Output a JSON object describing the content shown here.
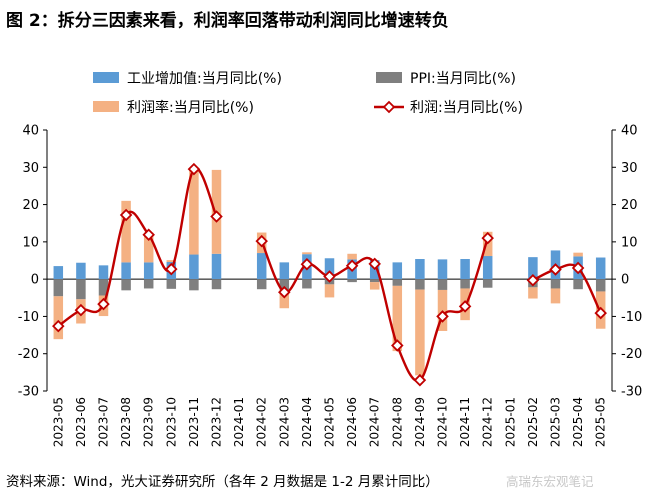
{
  "title": "图 2：拆分三因素来看，利润率回落带动利润同比增速转负",
  "source": "资料来源：Wind，光大证券研究所（各年 2 月数据是 1-2 月累计同比）",
  "watermark": "高瑞东宏观笔记",
  "colors": {
    "industrial": "#5b9bd5",
    "ppi": "#7f7f7f",
    "margin": "#f4b183",
    "profit": "#c00000"
  },
  "chart_data": {
    "type": "bar+line",
    "categories": [
      "2023-05",
      "2023-06",
      "2023-07",
      "2023-08",
      "2023-09",
      "2023-10",
      "2023-11",
      "2023-12",
      "2024-01",
      "2024-02",
      "2024-03",
      "2024-04",
      "2024-05",
      "2024-06",
      "2024-07",
      "2024-08",
      "2024-09",
      "2024-10",
      "2024-11",
      "2024-12",
      "2025-01",
      "2025-02",
      "2025-03",
      "2025-04",
      "2025-05"
    ],
    "ylim": [
      -30,
      40
    ],
    "yticks": [
      40,
      30,
      20,
      10,
      0,
      -10,
      -20,
      -30
    ],
    "grid": false,
    "legend_position": "top",
    "series": [
      {
        "name": "工业增加值:当月同比(%)",
        "type": "bar",
        "values": [
          3.5,
          4.4,
          3.7,
          4.5,
          4.5,
          4.6,
          6.6,
          6.8,
          null,
          7.0,
          4.5,
          6.7,
          5.6,
          5.3,
          5.1,
          4.5,
          5.4,
          5.3,
          5.4,
          6.2,
          null,
          5.9,
          7.7,
          6.1,
          5.8
        ]
      },
      {
        "name": "PPI:当月同比(%)",
        "type": "bar",
        "values": [
          -4.6,
          -5.4,
          -4.4,
          -3.0,
          -2.5,
          -2.6,
          -3.0,
          -2.7,
          null,
          -2.7,
          -2.8,
          -2.5,
          -1.4,
          -0.8,
          -0.8,
          -1.8,
          -2.8,
          -2.9,
          -2.5,
          -2.3,
          null,
          -2.2,
          -2.5,
          -2.7,
          -3.3
        ]
      },
      {
        "name": "利润率:当月同比(%)",
        "type": "bar",
        "values": [
          -11.5,
          -6.5,
          -5.5,
          16.5,
          8.0,
          0.5,
          23.0,
          22.5,
          null,
          5.5,
          -5.0,
          0.5,
          -3.5,
          1.5,
          -2.0,
          -17.5,
          -23.0,
          -11.0,
          -8.5,
          6.5,
          null,
          -3.0,
          -4.0,
          1.0,
          -10.0
        ]
      },
      {
        "name": "利润:当月同比(%)",
        "type": "line",
        "values": [
          -12.6,
          -8.3,
          -6.7,
          17.2,
          11.9,
          2.7,
          29.5,
          16.8,
          null,
          10.2,
          -3.5,
          4.0,
          0.7,
          3.6,
          4.1,
          -17.8,
          -27.1,
          -10.0,
          -7.3,
          11.0,
          null,
          -0.3,
          2.6,
          3.0,
          -9.1
        ]
      }
    ]
  }
}
